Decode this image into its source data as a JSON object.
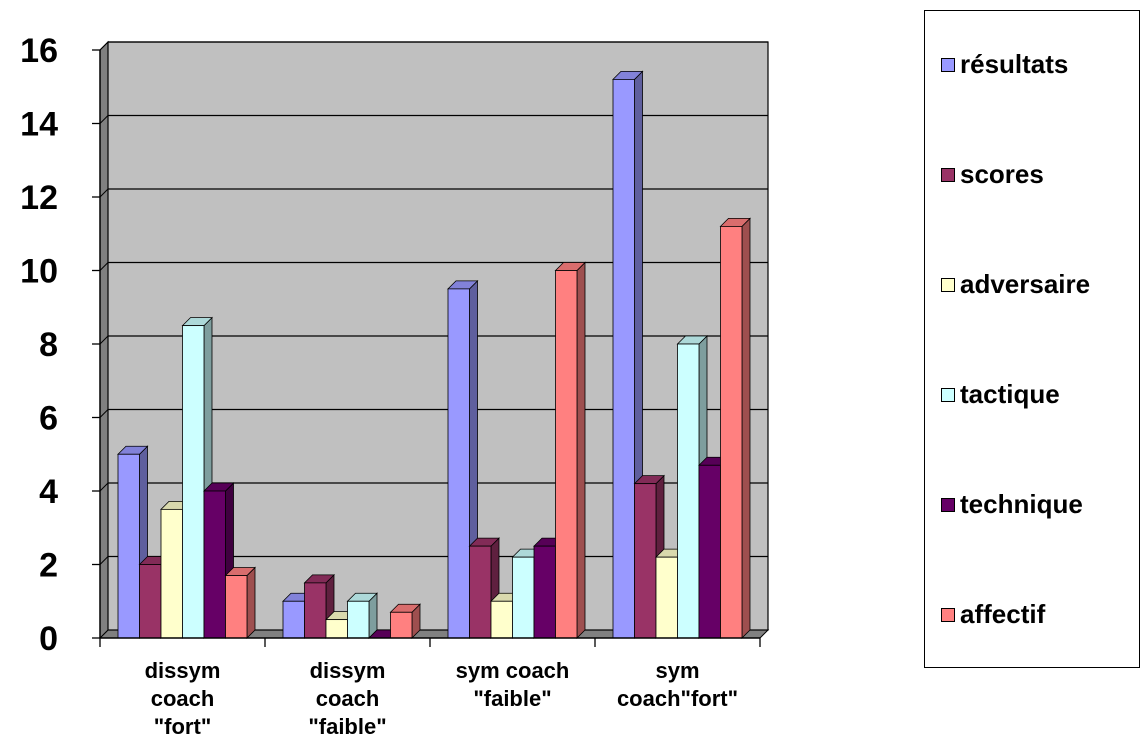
{
  "chart_data": {
    "type": "bar",
    "categories": [
      [
        "dissym",
        "coach",
        "\"fort\""
      ],
      [
        "dissym",
        "coach",
        "\"faible\""
      ],
      [
        "sym coach",
        "\"faible\""
      ],
      [
        "sym",
        "coach\"fort\""
      ]
    ],
    "series": [
      {
        "name": "résultats",
        "color": "#9999FF",
        "values": [
          5,
          1,
          9.5,
          15.2
        ]
      },
      {
        "name": "scores",
        "color": "#993366",
        "values": [
          2,
          1.5,
          2.5,
          4.2
        ]
      },
      {
        "name": "adversaire",
        "color": "#FFFFCC",
        "values": [
          3.5,
          0.5,
          1,
          2.2
        ]
      },
      {
        "name": "tactique",
        "color": "#CCFFFF",
        "values": [
          8.5,
          1,
          2.2,
          8
        ]
      },
      {
        "name": "technique",
        "color": "#660066",
        "values": [
          4,
          0,
          2.5,
          4.7
        ]
      },
      {
        "name": "affectif",
        "color": "#FF8080",
        "values": [
          1.7,
          0.7,
          10,
          11.2
        ]
      }
    ],
    "yticks": [
      0,
      2,
      4,
      6,
      8,
      10,
      12,
      14,
      16
    ],
    "ylim": [
      0,
      16
    ],
    "grid": true,
    "legend": "right",
    "title": "",
    "xlabel": "",
    "ylabel": ""
  }
}
